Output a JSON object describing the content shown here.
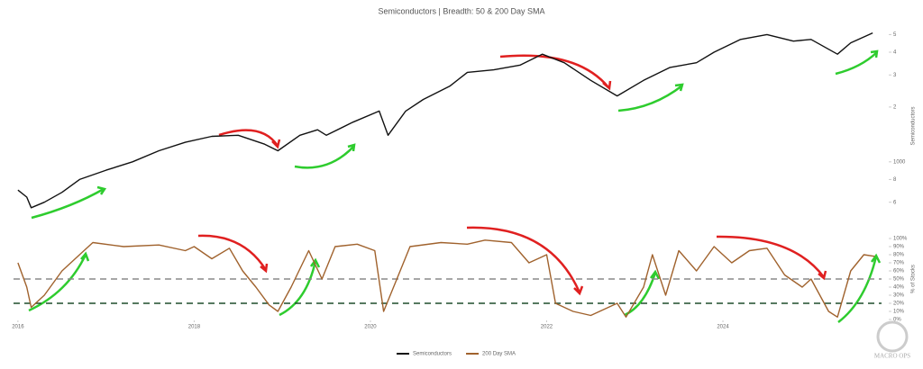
{
  "chart_data": [
    {
      "type": "line",
      "title": "Semiconductors | Breadth: 50 & 200 Day SMA",
      "y_label": "Semiconductors",
      "log_scale": true,
      "x": [
        2016.0,
        2016.1,
        2016.15,
        2016.3,
        2016.5,
        2016.7,
        2017.0,
        2017.3,
        2017.6,
        2017.9,
        2018.2,
        2018.5,
        2018.8,
        2018.95,
        2019.2,
        2019.4,
        2019.5,
        2019.8,
        2020.1,
        2020.2,
        2020.4,
        2020.6,
        2020.9,
        2021.1,
        2021.4,
        2021.7,
        2021.95,
        2022.2,
        2022.5,
        2022.8,
        2023.1,
        2023.4,
        2023.7,
        2023.9,
        2024.2,
        2024.5,
        2024.8,
        2025.0,
        2025.3,
        2025.45,
        2025.7
      ],
      "series": [
        {
          "name": "Semiconductors",
          "color": "#111111",
          "values": [
            700,
            640,
            560,
            600,
            680,
            800,
            900,
            1000,
            1150,
            1280,
            1380,
            1400,
            1250,
            1150,
            1400,
            1500,
            1400,
            1650,
            1900,
            1400,
            1900,
            2200,
            2600,
            3100,
            3200,
            3400,
            3900,
            3500,
            2800,
            2300,
            2800,
            3300,
            3500,
            4000,
            4700,
            5000,
            4600,
            4700,
            3900,
            4500,
            5100
          ]
        }
      ],
      "ylim": [
        450,
        5500
      ],
      "yticks": [
        {
          "value": 600,
          "label": "6"
        },
        {
          "value": 800,
          "label": "8"
        },
        1000,
        {
          "value": 2000,
          "label": "2"
        },
        {
          "value": 3000,
          "label": "3"
        },
        {
          "value": 4000,
          "label": "4"
        },
        {
          "value": 5000,
          "label": "5"
        }
      ]
    },
    {
      "type": "line",
      "y_label": "% of Stocks",
      "x": [
        2016.0,
        2016.1,
        2016.15,
        2016.3,
        2016.5,
        2016.7,
        2016.85,
        2017.2,
        2017.6,
        2017.9,
        2018.0,
        2018.2,
        2018.4,
        2018.55,
        2018.7,
        2018.85,
        2018.95,
        2019.1,
        2019.3,
        2019.45,
        2019.6,
        2019.85,
        2020.05,
        2020.15,
        2020.3,
        2020.45,
        2020.8,
        2021.1,
        2021.3,
        2021.6,
        2021.8,
        2022.0,
        2022.1,
        2022.3,
        2022.5,
        2022.8,
        2022.9,
        2023.1,
        2023.2,
        2023.35,
        2023.5,
        2023.7,
        2023.9,
        2024.1,
        2024.3,
        2024.5,
        2024.7,
        2024.9,
        2025.0,
        2025.2,
        2025.3,
        2025.45,
        2025.6,
        2025.72
      ],
      "series": [
        {
          "name": "200 Day SMA",
          "color": "#a0622d",
          "values": [
            70,
            40,
            15,
            30,
            60,
            80,
            95,
            90,
            92,
            85,
            90,
            75,
            88,
            60,
            40,
            18,
            10,
            40,
            85,
            50,
            90,
            93,
            85,
            10,
            50,
            90,
            95,
            93,
            98,
            95,
            70,
            80,
            20,
            10,
            5,
            20,
            3,
            40,
            80,
            30,
            85,
            60,
            90,
            70,
            85,
            88,
            55,
            40,
            50,
            10,
            3,
            60,
            80,
            78
          ]
        }
      ],
      "xlim": [
        2015.95,
        2025.8
      ],
      "xticks": [
        2016,
        2018,
        2020,
        2022,
        2024
      ],
      "ylim": [
        0,
        100
      ],
      "yticks": [
        {
          "value": 0,
          "label": "0%"
        },
        {
          "value": 10,
          "label": "10%"
        },
        {
          "value": 20,
          "label": "20%"
        },
        {
          "value": 30,
          "label": "30%"
        },
        {
          "value": 40,
          "label": "40%"
        },
        {
          "value": 50,
          "label": "50%"
        },
        {
          "value": 60,
          "label": "60%"
        },
        {
          "value": 70,
          "label": "70%"
        },
        {
          "value": 80,
          "label": "80%"
        },
        {
          "value": 90,
          "label": "90%"
        },
        {
          "value": 100,
          "label": "100%"
        }
      ],
      "hlines": [
        {
          "value": 50,
          "color": "#888888"
        },
        {
          "value": 20,
          "color": "#1f4d2b"
        }
      ]
    }
  ],
  "logo": "MACRO OPS"
}
